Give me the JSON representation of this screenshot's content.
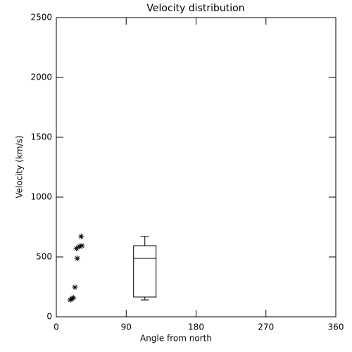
{
  "chart_data": {
    "type": "scatter",
    "title": "Velocity distribution",
    "x_label": "Angle from north",
    "y_label": "Velocity (km/s)",
    "xlim": [
      0,
      360
    ],
    "xticks": [
      0,
      90,
      180,
      270,
      360
    ],
    "ylim": [
      0,
      2500
    ],
    "yticks": [
      0,
      500,
      1000,
      1500,
      2000,
      2500
    ],
    "color": "#000000",
    "points": {
      "x": [
        18,
        20,
        22,
        24,
        27,
        26,
        30,
        33,
        32
      ],
      "values": [
        141,
        153,
        159,
        247,
        488,
        571,
        588,
        594,
        671
      ]
    },
    "box": {
      "x": 114,
      "min": 141,
      "q1": 165,
      "median": 488,
      "q3": 594,
      "max": 671
    }
  }
}
